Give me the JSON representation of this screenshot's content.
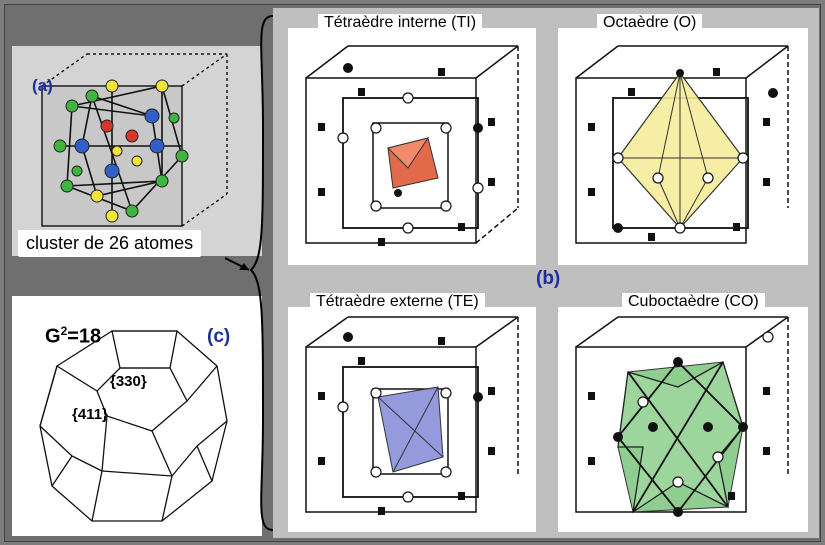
{
  "panel_a": {
    "tag": "(a)",
    "caption": "cluster de 26 atomes"
  },
  "panel_b": {
    "tag": "(b)",
    "titles": {
      "ti": "Tétraèdre interne (TI)",
      "o": "Octaèdre (O)",
      "te": "Tétraèdre externe (TE)",
      "co": "Cuboctaèdre (CO)"
    }
  },
  "panel_c": {
    "tag": "(c)",
    "formula_prefix": "G",
    "formula_sup": "2",
    "formula_suffix": "=18",
    "face_330": "{330}",
    "face_411": "{411}"
  },
  "colors": {
    "ti_fill": "#e2694a",
    "o_fill": "#f4ec9a",
    "te_fill": "#8a8fd8",
    "co_fill": "#7cc47c",
    "tag_color": "#1f2f9f"
  }
}
